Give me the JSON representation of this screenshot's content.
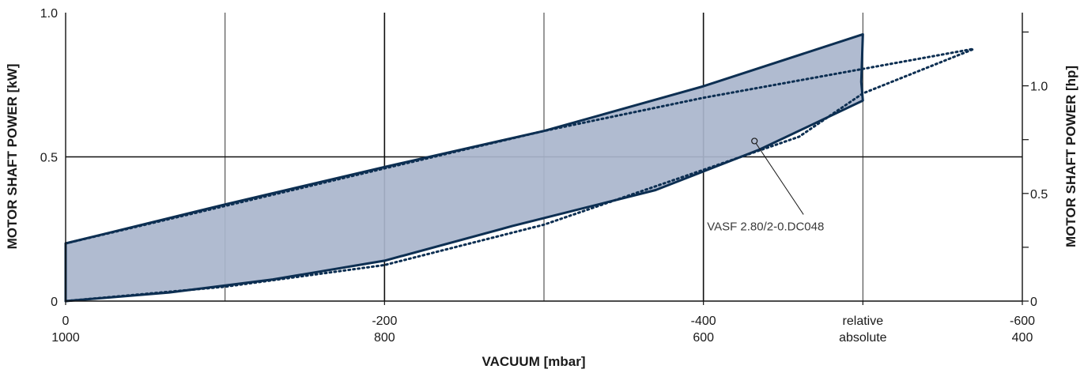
{
  "chart_data": {
    "type": "area",
    "xlabel": "VACUUM  [mbar]",
    "ylabel_left": "MOTOR SHAFT POWER  [kW]",
    "ylabel_right": "MOTOR SHAFT POWER  [hp]",
    "x_range": [
      0,
      -600
    ],
    "ylim_left": [
      0,
      1.0
    ],
    "ylim_right": [
      0,
      1.34
    ],
    "grid": true,
    "x_ticks": [
      {
        "value": 0,
        "relative": "0",
        "absolute": "1000"
      },
      {
        "value": -200,
        "relative": "-200",
        "absolute": "800"
      },
      {
        "value": -400,
        "relative": "-400",
        "absolute": "600"
      },
      {
        "value": -500,
        "relative": "relative",
        "absolute": "absolute"
      },
      {
        "value": -600,
        "relative": "-600",
        "absolute": "400"
      }
    ],
    "x_minor_gridlines": [
      -100,
      -300,
      -500
    ],
    "y_left_ticks": [
      {
        "value": 0,
        "label": "0"
      },
      {
        "value": 0.5,
        "label": "0.5"
      },
      {
        "value": 1.0,
        "label": "1.0"
      }
    ],
    "y_right_ticks": [
      {
        "value": 0,
        "label": "0"
      },
      {
        "value": 0.25,
        "label": ""
      },
      {
        "value": 0.5,
        "label": "0.5"
      },
      {
        "value": 0.75,
        "label": ""
      },
      {
        "value": 1.0,
        "label": "1.0"
      },
      {
        "value": 1.25,
        "label": ""
      }
    ],
    "series": [
      {
        "style": "solid-band",
        "upper": [
          [
            0,
            0.2
          ],
          [
            -100,
            0.335
          ],
          [
            -200,
            0.465
          ],
          [
            -300,
            0.59
          ],
          [
            -400,
            0.745
          ],
          [
            -500,
            0.925
          ]
        ],
        "lower": [
          [
            0,
            0.0
          ],
          [
            -65,
            0.03
          ],
          [
            -130,
            0.075
          ],
          [
            -200,
            0.14
          ],
          [
            -280,
            0.26
          ],
          [
            -370,
            0.385
          ],
          [
            -435,
            0.525
          ],
          [
            -500,
            0.695
          ]
        ],
        "right_edge": [
          [
            -500,
            0.925
          ],
          [
            -499,
            0.76
          ],
          [
            -500,
            0.695
          ]
        ]
      },
      {
        "style": "dotted",
        "upper": [
          [
            0,
            0.2
          ],
          [
            -100,
            0.33
          ],
          [
            -200,
            0.46
          ],
          [
            -300,
            0.59
          ],
          [
            -400,
            0.705
          ],
          [
            -500,
            0.805
          ],
          [
            -570,
            0.875
          ]
        ],
        "lower": [
          [
            0,
            0.0
          ],
          [
            -100,
            0.05
          ],
          [
            -200,
            0.125
          ],
          [
            -300,
            0.265
          ],
          [
            -400,
            0.455
          ],
          [
            -460,
            0.57
          ],
          [
            -500,
            0.72
          ],
          [
            -570,
            0.875
          ]
        ]
      }
    ],
    "annotation": {
      "text": "VASF 2.80/2-0.DC048",
      "point": [
        -432,
        0.555
      ]
    }
  }
}
